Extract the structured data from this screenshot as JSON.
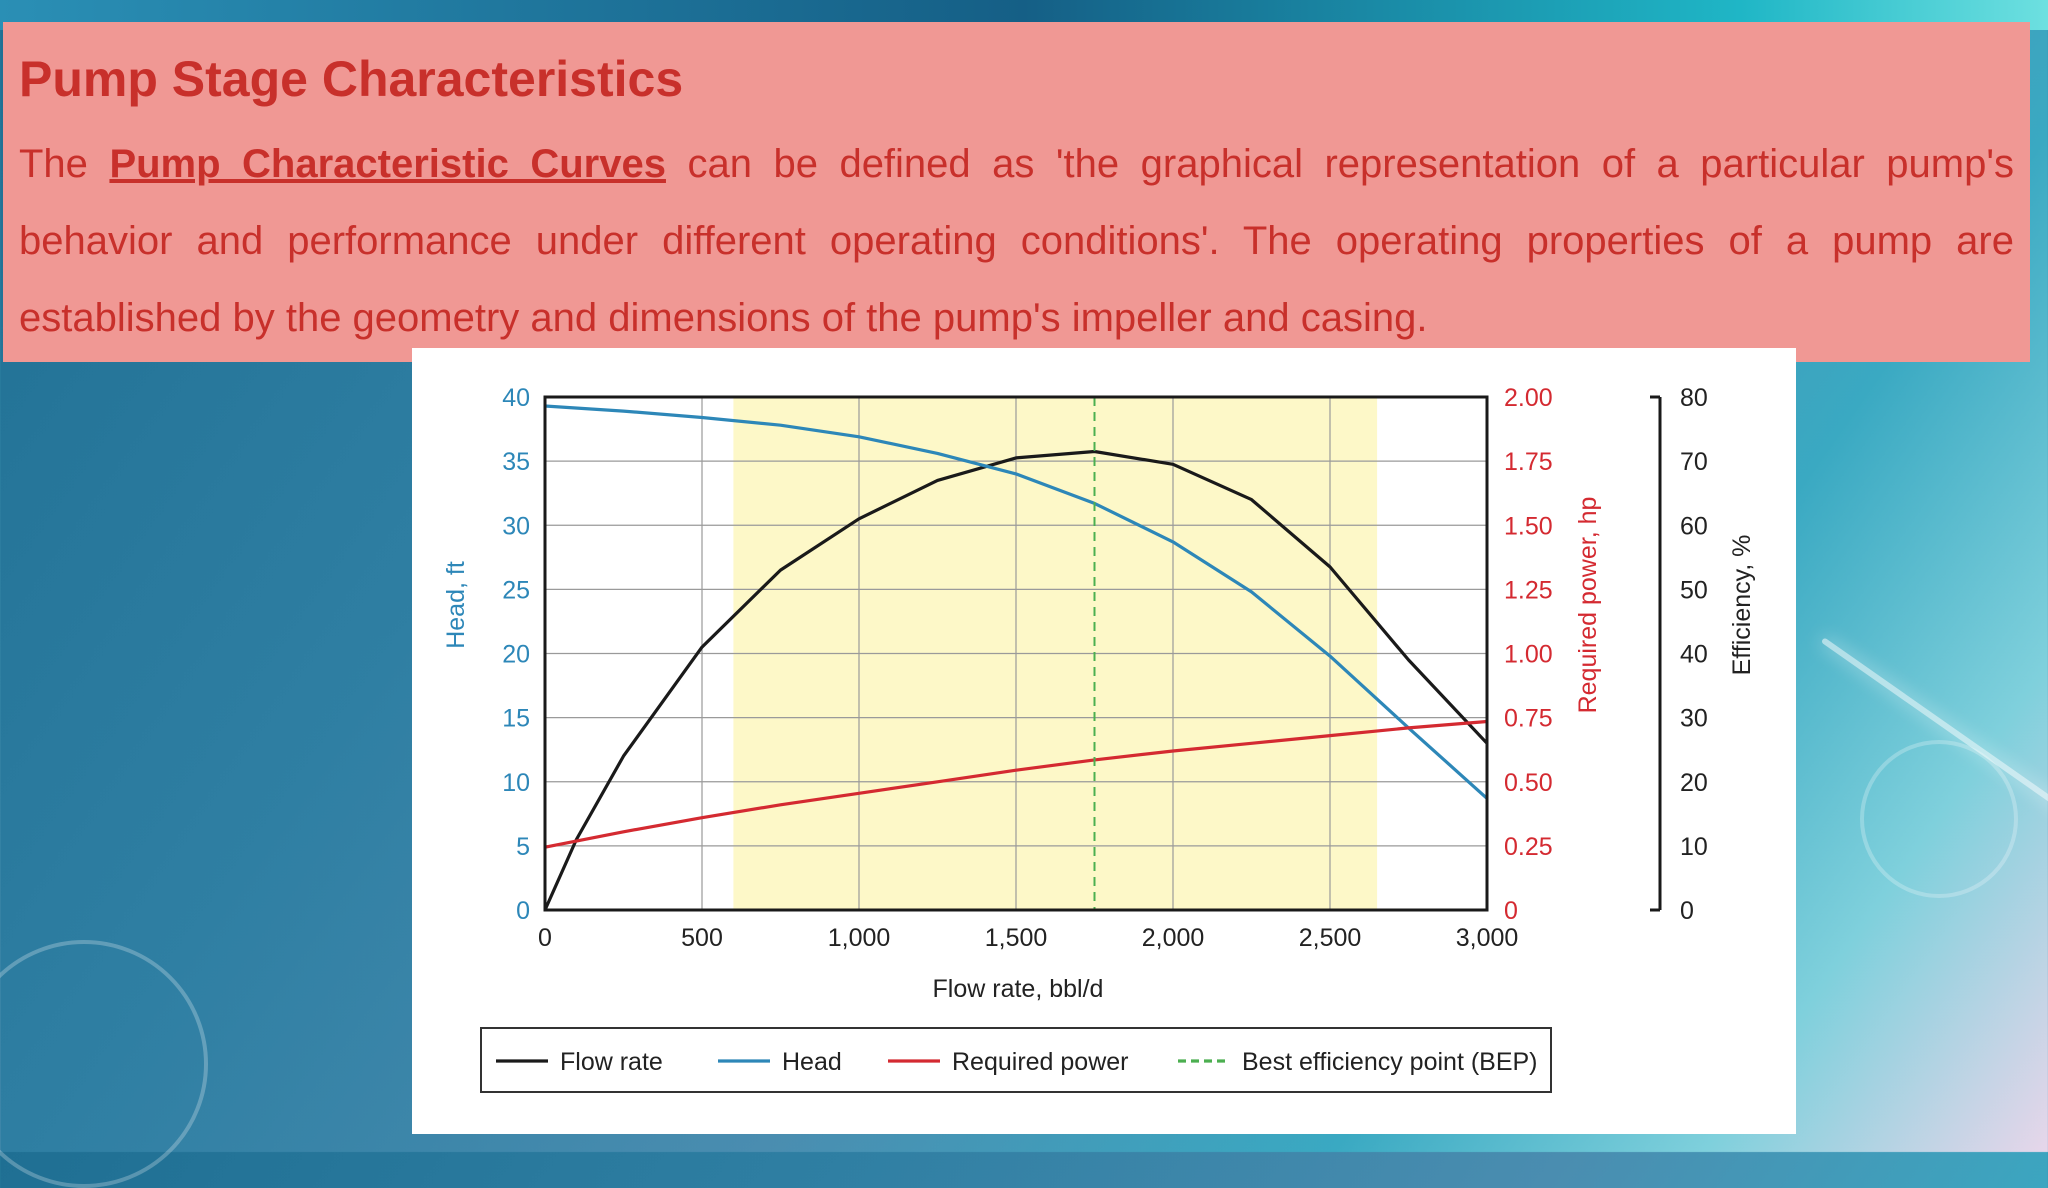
{
  "slide": {
    "title": "Pump Stage Characteristics",
    "para_before": "The ",
    "para_keyword": "Pump Characteristic Curves",
    "para_after": " can be defined as 'the graphical representation of a particular pump's behavior and performance under different operating conditions'. The operating properties of a pump are established by the geometry and dimensions of the pump's impeller and casing."
  },
  "colors": {
    "flow": "#1a1a1a",
    "head": "#2d87b8",
    "power": "#d42a31",
    "bep": "#4caf50",
    "band": "#fdf8c8"
  },
  "chart_data": {
    "type": "line",
    "xlabel": "Flow rate, bbl/d",
    "x_ticks": [
      "0",
      "500",
      "1,000",
      "1,500",
      "2,000",
      "2,500",
      "3,000"
    ],
    "xlim": [
      0,
      3000
    ],
    "axes": {
      "head": {
        "label": "Head, ft",
        "range": [
          0,
          40
        ],
        "ticks": [
          "0",
          "5",
          "10",
          "15",
          "20",
          "25",
          "30",
          "35",
          "40"
        ]
      },
      "power": {
        "label": "Required power, hp",
        "range": [
          0,
          2
        ],
        "ticks": [
          "0",
          "0.25",
          "0.50",
          "0.75",
          "1.00",
          "1.25",
          "1.50",
          "1.75",
          "2.00"
        ]
      },
      "efficiency": {
        "label": "Efficiency, %",
        "range": [
          0,
          80
        ],
        "ticks": [
          "0",
          "10",
          "20",
          "30",
          "40",
          "50",
          "60",
          "70",
          "80"
        ]
      }
    },
    "operating_range": [
      600,
      2650
    ],
    "bep_x": 1750,
    "series": [
      {
        "name": "Flow rate",
        "axis": "efficiency",
        "x": [
          0,
          100,
          250,
          500,
          750,
          1000,
          1250,
          1500,
          1750,
          2000,
          2250,
          2500,
          2750,
          3000
        ],
        "y": [
          0,
          11,
          24,
          41,
          53,
          61,
          67,
          70.5,
          71.5,
          69.5,
          64,
          53.5,
          39,
          26
        ]
      },
      {
        "name": "Head",
        "axis": "head",
        "x": [
          0,
          250,
          500,
          750,
          1000,
          1250,
          1500,
          1750,
          2000,
          2250,
          2500,
          2750,
          3000
        ],
        "y": [
          39.3,
          38.9,
          38.4,
          37.8,
          36.9,
          35.6,
          34.0,
          31.7,
          28.7,
          24.8,
          19.8,
          14.2,
          8.7
        ]
      },
      {
        "name": "Required power",
        "axis": "power",
        "x": [
          0,
          250,
          500,
          750,
          1000,
          1250,
          1500,
          1750,
          2000,
          2250,
          2500,
          2750,
          3000
        ],
        "y": [
          0.245,
          0.305,
          0.36,
          0.41,
          0.455,
          0.5,
          0.545,
          0.585,
          0.62,
          0.65,
          0.68,
          0.71,
          0.735
        ]
      },
      {
        "name": "Best efficiency point (BEP)",
        "style": "dashed-vertical",
        "x": [
          1750,
          1750
        ]
      }
    ],
    "legend": [
      "Flow rate",
      "Head",
      "Required power",
      "Best efficiency point (BEP)"
    ],
    "legend_position": "bottom",
    "grid": true
  }
}
